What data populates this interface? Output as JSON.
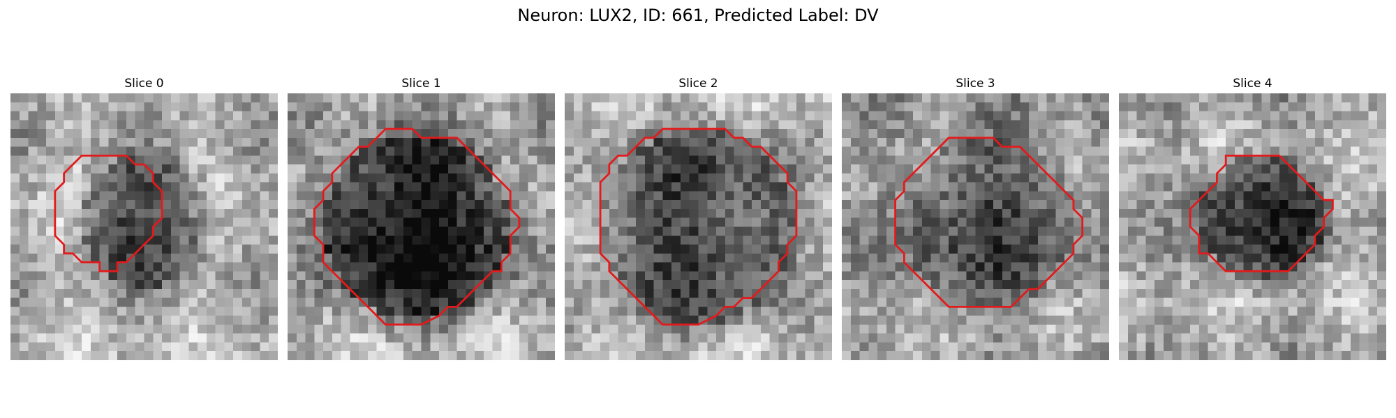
{
  "figure": {
    "title": "Neuron: LUX2, ID: 661, Predicted Label: DV",
    "contour_color": "#e31a1c",
    "image_colormap": "grayscale",
    "panels": [
      {
        "title": "Slice 0"
      },
      {
        "title": "Slice 1"
      },
      {
        "title": "Slice 2"
      },
      {
        "title": "Slice 3"
      },
      {
        "title": "Slice 4"
      }
    ]
  }
}
